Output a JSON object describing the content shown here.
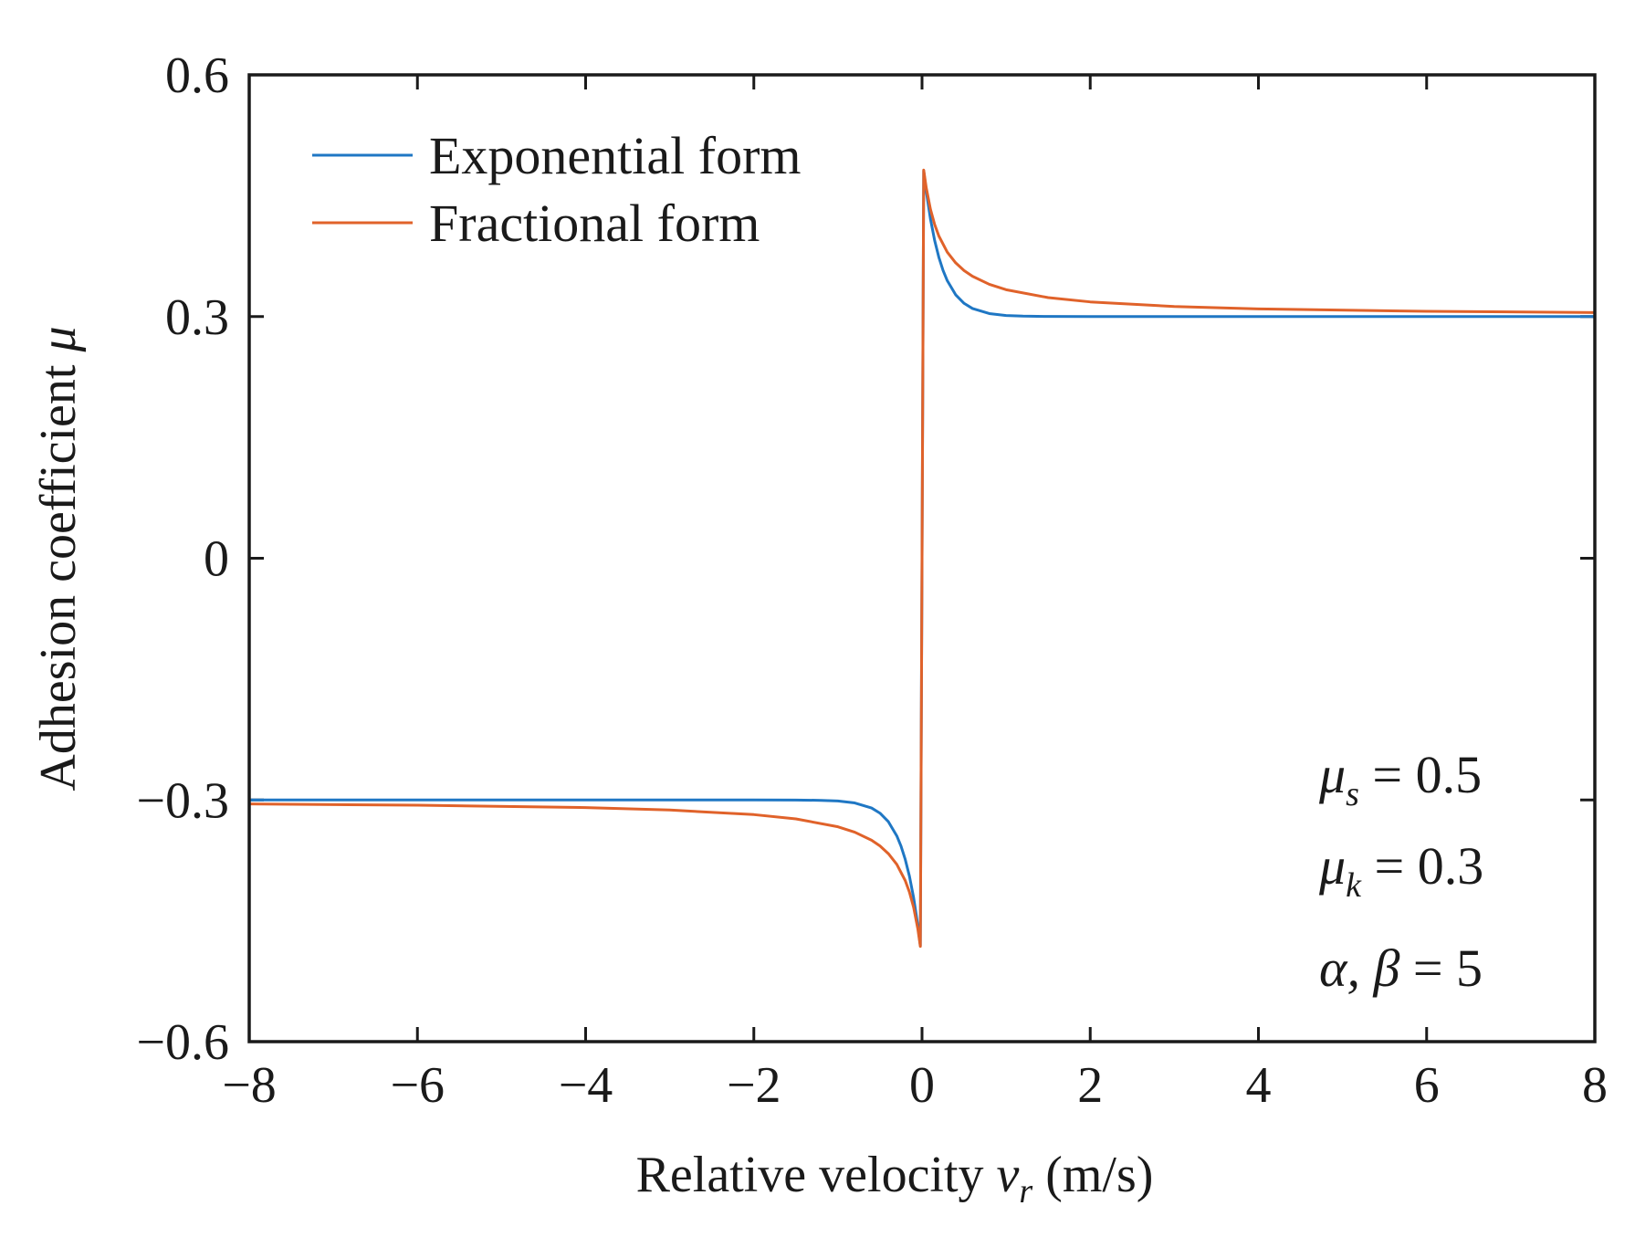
{
  "chart_data": {
    "type": "line",
    "xlabel": {
      "prefix": "Relative velocity ",
      "symbol": "v",
      "subscript": "r",
      "suffix": " (m/s)"
    },
    "ylabel": {
      "prefix": "Adhesion coefficient ",
      "symbol": "μ"
    },
    "xlim": [
      -8,
      8
    ],
    "ylim": [
      -0.6,
      0.6
    ],
    "xticks": [
      -8,
      -6,
      -4,
      -2,
      0,
      2,
      4,
      6,
      8
    ],
    "xtick_labels": [
      "−8",
      "−6",
      "−4",
      "−2",
      "0",
      "2",
      "4",
      "6",
      "8"
    ],
    "yticks": [
      -0.6,
      -0.3,
      0,
      0.3,
      0.6
    ],
    "ytick_labels": [
      "−0.6",
      "−0.3",
      "0",
      "0.3",
      "0.6"
    ],
    "legend_position": "top-left",
    "series": [
      {
        "name": "Exponential form",
        "color": "#1f77c4",
        "x": [
          -8,
          -6,
          -4,
          -2,
          -1.5,
          -1.2,
          -1.0,
          -0.8,
          -0.6,
          -0.5,
          -0.4,
          -0.3,
          -0.25,
          -0.2,
          -0.15,
          -0.1,
          -0.05,
          -0.02,
          0,
          0.02,
          0.05,
          0.1,
          0.15,
          0.2,
          0.25,
          0.3,
          0.4,
          0.5,
          0.6,
          0.8,
          1.0,
          1.2,
          1.5,
          2,
          4,
          6,
          8
        ],
        "y": [
          -0.3,
          -0.3,
          -0.3,
          -0.3,
          -0.3001,
          -0.3005,
          -0.3013,
          -0.3037,
          -0.31,
          -0.3164,
          -0.327,
          -0.3446,
          -0.3573,
          -0.3736,
          -0.3945,
          -0.4213,
          -0.4557,
          -0.481,
          0,
          0.481,
          0.4557,
          0.4213,
          0.3945,
          0.3736,
          0.3573,
          0.3446,
          0.327,
          0.3164,
          0.31,
          0.3037,
          0.3013,
          0.3005,
          0.3001,
          0.3,
          0.3,
          0.3,
          0.3
        ]
      },
      {
        "name": "Fractional form",
        "color": "#e0622a",
        "x": [
          -8,
          -6,
          -4,
          -3,
          -2,
          -1.5,
          -1.0,
          -0.8,
          -0.6,
          -0.5,
          -0.4,
          -0.3,
          -0.2,
          -0.15,
          -0.1,
          -0.05,
          -0.02,
          0,
          0.02,
          0.05,
          0.1,
          0.15,
          0.2,
          0.3,
          0.4,
          0.5,
          0.6,
          0.8,
          1.0,
          1.5,
          2,
          3,
          4,
          6,
          8
        ],
        "y": [
          -0.305,
          -0.3065,
          -0.3095,
          -0.3125,
          -0.3182,
          -0.3235,
          -0.3333,
          -0.34,
          -0.35,
          -0.3571,
          -0.3667,
          -0.38,
          -0.4,
          -0.4143,
          -0.4333,
          -0.46,
          -0.4818,
          0,
          0.4818,
          0.46,
          0.4333,
          0.4143,
          0.4,
          0.38,
          0.3667,
          0.3571,
          0.35,
          0.34,
          0.3333,
          0.3235,
          0.3182,
          0.3125,
          0.3095,
          0.3065,
          0.305
        ]
      }
    ],
    "annotations": [
      {
        "symbol": "μ",
        "subscript": "s",
        "text": " = 0.5"
      },
      {
        "symbol": "μ",
        "subscript": "k",
        "text": " = 0.3"
      },
      {
        "symbol": "α, β",
        "subscript": "",
        "text": " = 5"
      }
    ]
  }
}
